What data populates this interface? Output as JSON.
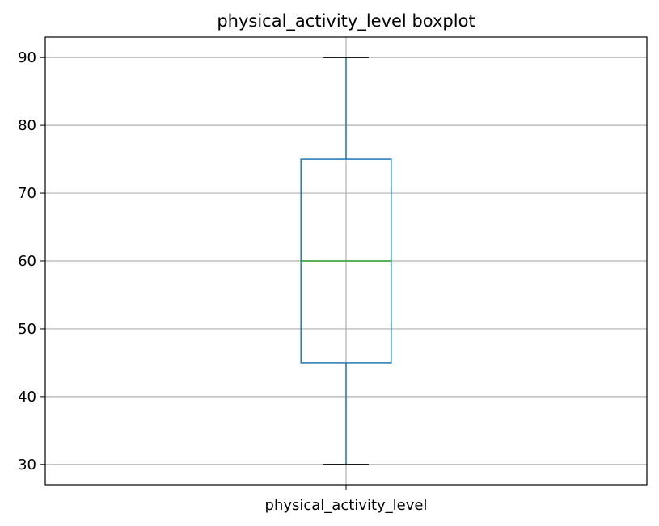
{
  "chart_data": {
    "type": "boxplot",
    "title": "physical_activity_level boxplot",
    "xlabel": "",
    "ylabel": "",
    "categories": [
      "physical_activity_level"
    ],
    "boxes": [
      {
        "category": "physical_activity_level",
        "min": 30,
        "q1": 45,
        "median": 60,
        "q3": 75,
        "max": 90
      }
    ],
    "yticks": [
      30,
      40,
      50,
      60,
      70,
      80,
      90
    ],
    "ylim": [
      27,
      93
    ],
    "grid": true,
    "colors": {
      "box": "#1f77b4",
      "whisker": "#1f77b4",
      "cap": "#000000",
      "median": "#2ca02c",
      "grid": "#b0b0b0"
    }
  }
}
